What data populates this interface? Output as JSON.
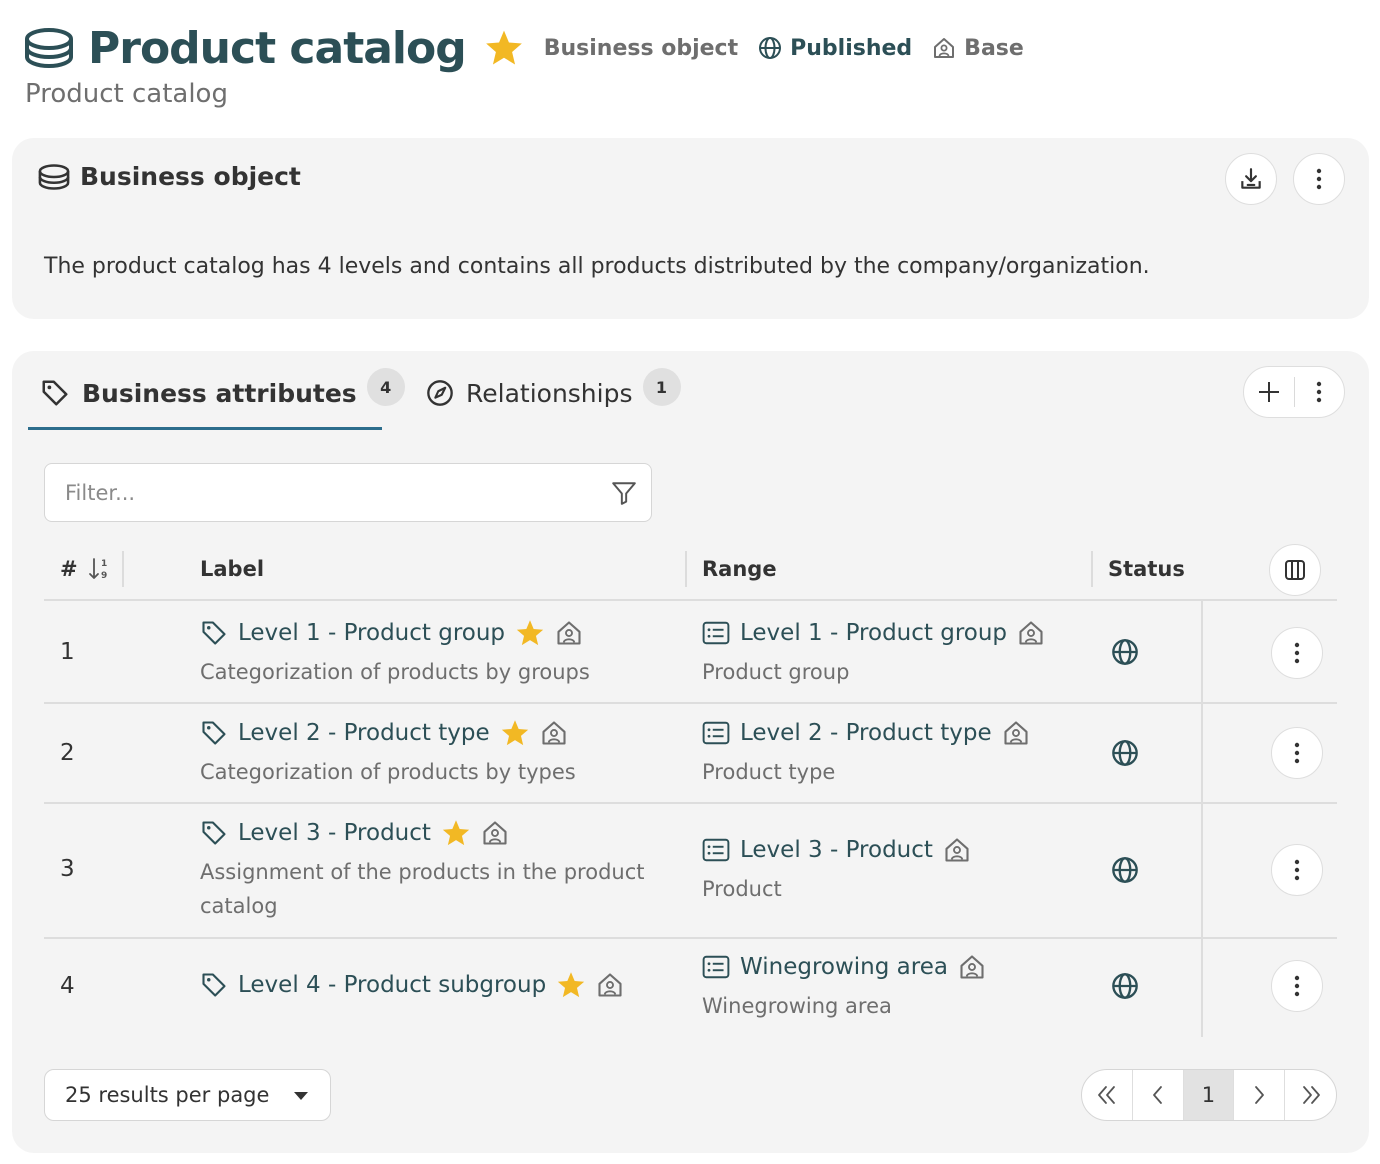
{
  "header": {
    "title": "Product catalog",
    "type_label": "Business object",
    "status_label": "Published",
    "scope_label": "Base",
    "subtitle": "Product catalog"
  },
  "details_card": {
    "title": "Business object",
    "description": "The product catalog has 4 levels and contains all products distributed by the company/organization."
  },
  "tabs": [
    {
      "label": "Business attributes",
      "count": "4",
      "active": true
    },
    {
      "label": "Relationships",
      "count": "1",
      "active": false
    }
  ],
  "filter": {
    "placeholder": "Filter...",
    "value": ""
  },
  "table": {
    "columns": {
      "number": "#",
      "label": "Label",
      "range": "Range",
      "status": "Status"
    },
    "rows": [
      {
        "num": "1",
        "label": "Level 1 - Product group",
        "label_desc": "Categorization of products by groups",
        "range": "Level 1 - Product group",
        "range_desc": "Product group",
        "status": "globe-icon"
      },
      {
        "num": "2",
        "label": "Level 2 - Product type",
        "label_desc": "Categorization of products by types",
        "range": "Level 2 - Product type",
        "range_desc": "Product type",
        "status": "globe-icon"
      },
      {
        "num": "3",
        "label": "Level 3 - Product",
        "label_desc": "Assignment of the products in the product catalog",
        "range": "Level 3 - Product",
        "range_desc": "Product",
        "status": "globe-icon"
      },
      {
        "num": "4",
        "label": "Level 4 - Product subgroup",
        "label_desc": "",
        "range": "Winegrowing area",
        "range_desc": "Winegrowing area",
        "status": "globe-icon"
      }
    ]
  },
  "pagination": {
    "per_page_label": "25 results per page",
    "current_page": "1"
  },
  "colors": {
    "title": "#2c4f56",
    "star": "#f2b824",
    "tab_underline": "#2c6d8c",
    "card_bg": "#f4f4f4"
  }
}
